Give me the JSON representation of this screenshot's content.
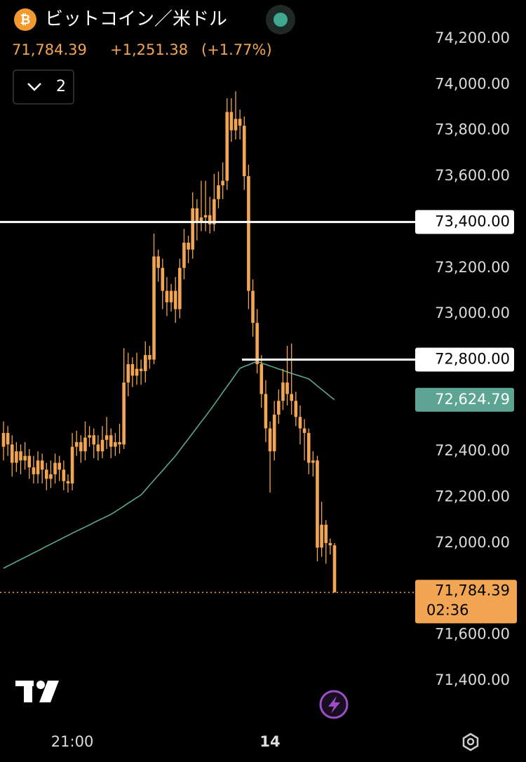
{
  "chart_data": {
    "type": "candlestick",
    "title": "ビットコイン／米ドル",
    "price": "71,784.39",
    "change": "+1,251.38",
    "change_pct": "(+1.77%)",
    "interval": "2",
    "color": "#f2a552",
    "categories": [
      null,
      null,
      null,
      null,
      null,
      null,
      null,
      null,
      null,
      null,
      null,
      null,
      null,
      null,
      null,
      null,
      "21:00",
      null,
      null,
      null,
      null,
      null,
      null,
      null,
      null,
      null,
      null,
      null,
      null,
      null,
      null,
      null,
      null,
      null,
      null,
      null,
      null,
      null,
      null,
      null,
      null,
      null,
      null,
      null,
      null,
      null,
      null,
      null,
      null,
      null,
      null,
      null,
      null,
      null,
      null,
      null,
      null,
      null,
      null,
      null,
      null,
      null,
      "14",
      null,
      null,
      null,
      null,
      null,
      null,
      null,
      null,
      null,
      null,
      null,
      null,
      null,
      null,
      null
    ],
    "open": [
      72420,
      72480,
      72430,
      72350,
      72400,
      72360,
      72380,
      72330,
      72300,
      72360,
      72320,
      72280,
      72300,
      72350,
      72320,
      72270,
      72260,
      72420,
      72440,
      72400,
      72460,
      72470,
      72430,
      72400,
      72450,
      72470,
      72420,
      72440,
      72430,
      72700,
      72780,
      72730,
      72760,
      72750,
      72820,
      72800,
      73250,
      73200,
      73100,
      73050,
      73100,
      73020,
      73200,
      73310,
      73280,
      73460,
      73400,
      73420,
      73430,
      73390,
      73500,
      73560,
      73580,
      73880,
      73800,
      73850,
      73820,
      73600,
      73100,
      72960,
      72780,
      72650,
      72500,
      72400,
      72560,
      72620,
      72700,
      72650,
      72620,
      72550,
      72500,
      72480,
      72350,
      72360,
      71980,
      72080,
      72000,
      71990
    ],
    "high": [
      72530,
      72510,
      72470,
      72440,
      72430,
      72440,
      72410,
      72380,
      72400,
      72390,
      72350,
      72360,
      72390,
      72380,
      72360,
      72300,
      72480,
      72490,
      72470,
      72530,
      72510,
      72500,
      72470,
      72510,
      72550,
      72500,
      72480,
      72520,
      72850,
      72830,
      72810,
      72830,
      72800,
      72880,
      72860,
      73350,
      73280,
      73240,
      73160,
      73130,
      73160,
      73240,
      73370,
      73340,
      73530,
      73500,
      73580,
      73580,
      73510,
      73610,
      73620,
      73660,
      73940,
      73940,
      73970,
      73890,
      73860,
      73650,
      73150,
      73020,
      72820,
      72710,
      72530,
      72620,
      72670,
      72760,
      72860,
      72870,
      72660,
      72600,
      72540,
      72500,
      72400,
      72380,
      72180,
      72100,
      72020,
      72000
    ],
    "low": [
      72360,
      72380,
      72290,
      72310,
      72300,
      72320,
      72280,
      72260,
      72260,
      72260,
      72230,
      72240,
      72260,
      72270,
      72230,
      72220,
      72230,
      72380,
      72350,
      72360,
      72420,
      72370,
      72360,
      72370,
      72410,
      72370,
      72380,
      72390,
      72410,
      72640,
      72680,
      72690,
      72690,
      72700,
      72760,
      72780,
      73140,
      73020,
      72990,
      73010,
      72960,
      72980,
      73150,
      73220,
      73240,
      73320,
      73360,
      73360,
      73350,
      73360,
      73460,
      73500,
      73540,
      73750,
      73760,
      73760,
      73540,
      73020,
      72900,
      72740,
      72590,
      72440,
      72220,
      72360,
      72520,
      72580,
      72600,
      72560,
      72510,
      72430,
      72360,
      72300,
      72290,
      71920,
      71940,
      71910,
      71950,
      71784.39
    ],
    "close": [
      72480,
      72430,
      72350,
      72400,
      72360,
      72380,
      72330,
      72300,
      72360,
      72320,
      72280,
      72300,
      72350,
      72320,
      72270,
      72260,
      72420,
      72440,
      72400,
      72460,
      72470,
      72430,
      72400,
      72450,
      72470,
      72420,
      72440,
      72430,
      72700,
      72780,
      72730,
      72760,
      72750,
      72820,
      72800,
      73250,
      73200,
      73100,
      73050,
      73100,
      73020,
      73200,
      73310,
      73280,
      73460,
      73400,
      73420,
      73430,
      73390,
      73500,
      73560,
      73580,
      73880,
      73800,
      73850,
      73820,
      73600,
      73100,
      72960,
      72780,
      72650,
      72500,
      72400,
      72560,
      72620,
      72700,
      72650,
      72620,
      72550,
      72500,
      72480,
      72350,
      72360,
      71980,
      72080,
      72000,
      71990,
      71784.39
    ],
    "ma": {
      "color": "#5ea493",
      "label": "72,624.79",
      "values": [
        71890,
        71900,
        71909,
        71919,
        71928,
        71938,
        71947,
        71957,
        71966,
        71976,
        71986,
        71995,
        72005,
        72014,
        72024,
        72033,
        72043,
        72052,
        72061,
        72070,
        72079,
        72089,
        72098,
        72107,
        72116,
        72125,
        72137,
        72149,
        72161,
        72174,
        72186,
        72198,
        72210,
        72231,
        72253,
        72274,
        72295,
        72316,
        72338,
        72359,
        72380,
        72405,
        72430,
        72454,
        72479,
        72504,
        72529,
        72553,
        72578,
        72604,
        72630,
        72657,
        72683,
        72709,
        72736,
        72762,
        72770,
        72777,
        72785,
        72792,
        72785,
        72779,
        72772,
        72766,
        72759,
        72753,
        72746,
        72740,
        72734,
        72728,
        72722,
        72716,
        72701,
        72685,
        72670,
        72655,
        72639,
        72624.79
      ]
    },
    "lines": [
      {
        "value": 73400,
        "label": "73,400.00"
      },
      {
        "value": 72800,
        "label": "72,800.00"
      }
    ],
    "last": {
      "value": 71784.39,
      "label": "71,784.39",
      "countdown": "02:36"
    },
    "ylim": [
      71400,
      74200
    ],
    "yticks": [
      {
        "value": 74200,
        "label": "74,200.00"
      },
      {
        "value": 74000,
        "label": "74,000.00"
      },
      {
        "value": 73800,
        "label": "73,800.00"
      },
      {
        "value": 73600,
        "label": "73,600.00"
      },
      {
        "value": 73200,
        "label": "73,200.00"
      },
      {
        "value": 73000,
        "label": "73,000.00"
      },
      {
        "value": 72400,
        "label": "72,400.00"
      },
      {
        "value": 72200,
        "label": "72,200.00"
      },
      {
        "value": 72000,
        "label": "72,000.00"
      },
      {
        "value": 71600,
        "label": "71,600.00"
      },
      {
        "value": 71400,
        "label": "71,400.00"
      }
    ]
  }
}
